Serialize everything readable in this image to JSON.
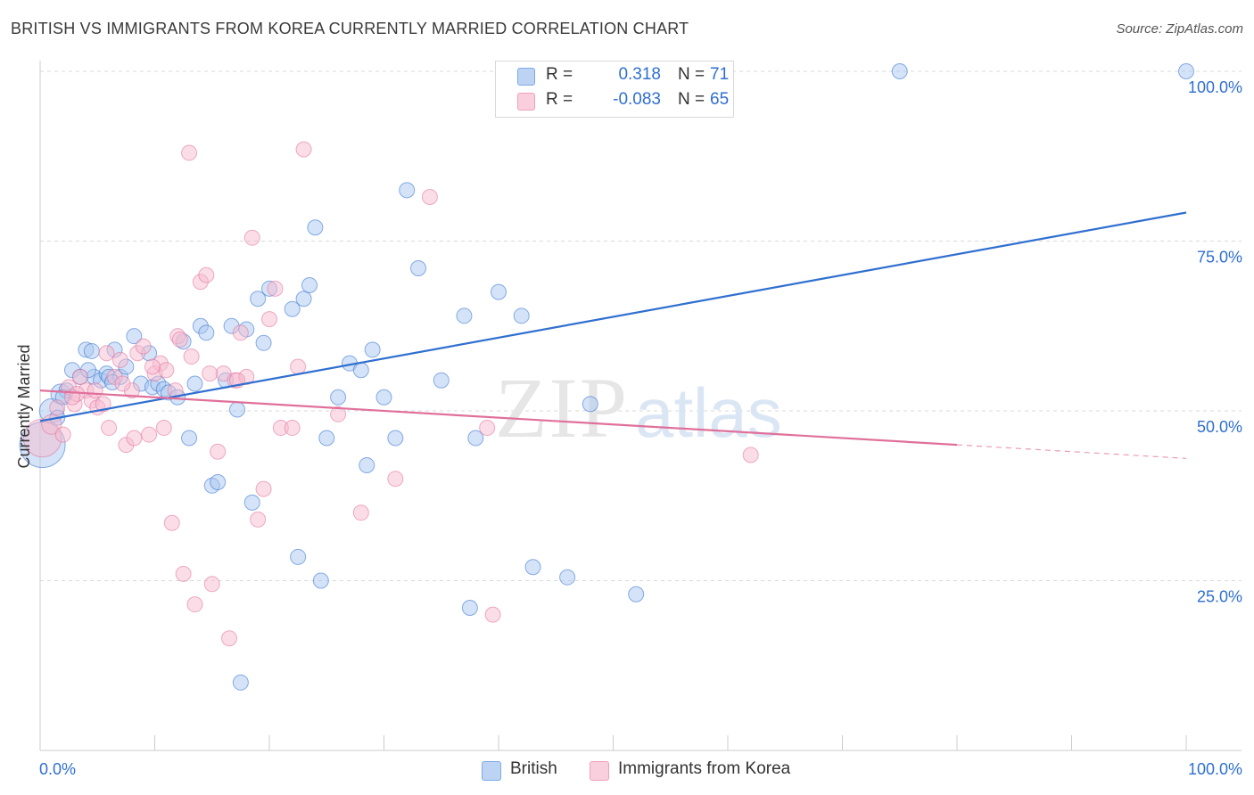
{
  "title": "BRITISH VS IMMIGRANTS FROM KOREA CURRENTLY MARRIED CORRELATION CHART",
  "source": "Source: ZipAtlas.com",
  "watermark": {
    "zip": "ZIP",
    "atlas": "atlas"
  },
  "legend": {
    "r_label": "R =",
    "n_label": "N =",
    "rows": [
      {
        "name": "British",
        "r": "0.318",
        "n": "71",
        "color": "#7eaae8"
      },
      {
        "name": "Immigrants from Korea",
        "r": "-0.083",
        "n": "65",
        "color": "#f0a0ba"
      }
    ]
  },
  "chart_data": {
    "type": "scatter",
    "title": "BRITISH VS IMMIGRANTS FROM KOREA CURRENTLY MARRIED CORRELATION CHART",
    "xlabel": "",
    "ylabel": "Currently Married",
    "xlim": [
      0,
      100
    ],
    "ylim": [
      0,
      105
    ],
    "x_tick_labels": [
      "0.0%",
      "100.0%"
    ],
    "y_ticks": [
      25,
      50,
      75,
      100
    ],
    "y_tick_labels": [
      "25.0%",
      "50.0%",
      "75.0%",
      "100.0%"
    ],
    "grid": true,
    "legend_position": "top-center",
    "series": [
      {
        "name": "British",
        "color": "#2f6fd0",
        "fill": "#a9c7f0",
        "trend": {
          "x0": 0,
          "y0": 48.5,
          "x1": 100,
          "y1": 79.2
        },
        "points": [
          [
            0.2,
            45,
            3
          ],
          [
            1,
            50,
            1.6
          ],
          [
            1.8,
            52.5,
            1.3
          ],
          [
            2.3,
            53,
            1
          ],
          [
            2.8,
            56,
            1
          ],
          [
            3.5,
            55,
            1
          ],
          [
            4,
            59,
            1
          ],
          [
            4.5,
            58.8,
            1
          ],
          [
            4.7,
            55,
            1
          ],
          [
            5.3,
            54.5,
            1
          ],
          [
            5.8,
            55.5,
            1
          ],
          [
            6,
            55,
            1
          ],
          [
            6.5,
            59,
            1
          ],
          [
            7,
            55,
            1
          ],
          [
            7.5,
            56.5,
            1
          ],
          [
            8.2,
            61,
            1
          ],
          [
            8.8,
            54,
            1
          ],
          [
            9.5,
            58.5,
            1
          ],
          [
            9.8,
            53.5,
            1
          ],
          [
            10.3,
            54,
            1
          ],
          [
            10.8,
            53.2,
            1
          ],
          [
            11.2,
            52.7,
            1
          ],
          [
            12,
            52,
            1
          ],
          [
            12.5,
            60.2,
            1
          ],
          [
            13,
            46,
            1
          ],
          [
            13.5,
            54,
            1
          ],
          [
            14,
            62.5,
            1
          ],
          [
            14.5,
            61.5,
            1
          ],
          [
            15,
            39,
            1
          ],
          [
            15.5,
            39.5,
            1
          ],
          [
            16.2,
            54.5,
            1
          ],
          [
            16.7,
            62.5,
            1
          ],
          [
            17.2,
            50.2,
            1
          ],
          [
            17.5,
            10,
            1
          ],
          [
            18,
            62,
            1
          ],
          [
            18.5,
            36.5,
            1
          ],
          [
            19,
            66.5,
            1
          ],
          [
            19.5,
            60,
            1
          ],
          [
            20,
            68,
            1
          ],
          [
            22,
            65,
            1
          ],
          [
            22.5,
            28.5,
            1
          ],
          [
            23,
            66.5,
            1
          ],
          [
            23.5,
            68.5,
            1
          ],
          [
            24,
            77,
            1
          ],
          [
            24.5,
            25,
            1
          ],
          [
            25,
            46,
            1
          ],
          [
            26,
            52,
            1
          ],
          [
            27,
            57,
            1
          ],
          [
            28,
            56,
            1
          ],
          [
            28.5,
            42,
            1
          ],
          [
            29,
            59,
            1
          ],
          [
            30,
            52,
            1
          ],
          [
            31,
            46,
            1
          ],
          [
            32,
            82.5,
            1
          ],
          [
            33,
            71,
            1
          ],
          [
            35,
            54.5,
            1
          ],
          [
            37,
            64,
            1
          ],
          [
            37.5,
            21,
            1
          ],
          [
            38,
            46,
            1
          ],
          [
            40,
            67.5,
            1
          ],
          [
            42,
            64,
            1
          ],
          [
            43,
            27,
            1
          ],
          [
            46,
            25.5,
            1
          ],
          [
            48,
            51,
            1
          ],
          [
            52,
            23,
            1
          ],
          [
            75,
            100,
            1
          ],
          [
            100,
            100,
            1
          ],
          [
            1.5,
            49,
            1
          ],
          [
            2,
            52,
            1
          ],
          [
            6.3,
            54.2,
            1
          ],
          [
            4.2,
            56,
            1
          ]
        ]
      },
      {
        "name": "Immigrants from Korea",
        "color": "#e0709a",
        "fill": "#f6bcd0",
        "trend": {
          "x0": 0,
          "y0": 53,
          "x1": 80,
          "y1": 45,
          "dash_to_x": 100,
          "dash_to_y": 43
        },
        "points": [
          [
            0.2,
            46,
            2.5
          ],
          [
            1,
            48,
            1.3
          ],
          [
            1.5,
            50.5,
            1
          ],
          [
            2,
            46.5,
            1
          ],
          [
            2.5,
            53.5,
            1
          ],
          [
            3,
            51,
            1
          ],
          [
            3.5,
            55,
            1
          ],
          [
            4,
            53,
            1
          ],
          [
            4.5,
            51.5,
            1
          ],
          [
            5,
            50.5,
            1
          ],
          [
            5.5,
            51,
            1
          ],
          [
            6,
            47.5,
            1
          ],
          [
            6.5,
            55,
            1
          ],
          [
            7,
            57.5,
            1
          ],
          [
            7.5,
            45,
            1
          ],
          [
            8,
            53,
            1
          ],
          [
            8.5,
            58.5,
            1
          ],
          [
            9,
            59.5,
            1
          ],
          [
            9.5,
            46.5,
            1
          ],
          [
            10,
            55.5,
            1
          ],
          [
            10.5,
            57,
            1
          ],
          [
            11,
            56,
            1
          ],
          [
            11.5,
            33.5,
            1
          ],
          [
            12,
            61,
            1
          ],
          [
            12.5,
            26,
            1
          ],
          [
            13,
            88,
            1
          ],
          [
            13.5,
            21.5,
            1
          ],
          [
            14,
            69,
            1
          ],
          [
            14.5,
            70,
            1
          ],
          [
            15,
            24.5,
            1
          ],
          [
            15.5,
            44,
            1
          ],
          [
            16,
            55.5,
            1
          ],
          [
            16.5,
            16.5,
            1
          ],
          [
            17,
            54.5,
            1
          ],
          [
            17.5,
            61.5,
            1
          ],
          [
            18,
            55,
            1
          ],
          [
            18.5,
            75.5,
            1
          ],
          [
            19,
            34,
            1
          ],
          [
            19.5,
            38.5,
            1
          ],
          [
            20,
            63.5,
            1
          ],
          [
            20.5,
            68,
            1
          ],
          [
            21,
            47.5,
            1
          ],
          [
            22,
            47.5,
            1
          ],
          [
            22.5,
            56.5,
            1
          ],
          [
            23,
            88.5,
            1
          ],
          [
            26,
            49.5,
            1
          ],
          [
            28,
            35,
            1
          ],
          [
            31,
            40,
            1
          ],
          [
            34,
            81.5,
            1
          ],
          [
            39,
            47.5,
            1
          ],
          [
            39.5,
            20,
            1
          ],
          [
            62,
            43.5,
            1
          ],
          [
            3.2,
            52.5,
            1
          ],
          [
            5.8,
            58.5,
            1
          ],
          [
            8.2,
            46,
            1
          ],
          [
            9.8,
            56.5,
            1
          ],
          [
            12.2,
            60.5,
            1
          ],
          [
            13.2,
            58,
            1
          ],
          [
            14.8,
            55.5,
            1
          ],
          [
            17.2,
            54.5,
            1
          ],
          [
            2.8,
            52,
            1
          ],
          [
            4.8,
            53,
            1
          ],
          [
            7.2,
            54,
            1
          ],
          [
            10.8,
            47.5,
            1
          ],
          [
            11.8,
            53,
            1
          ]
        ]
      }
    ]
  }
}
